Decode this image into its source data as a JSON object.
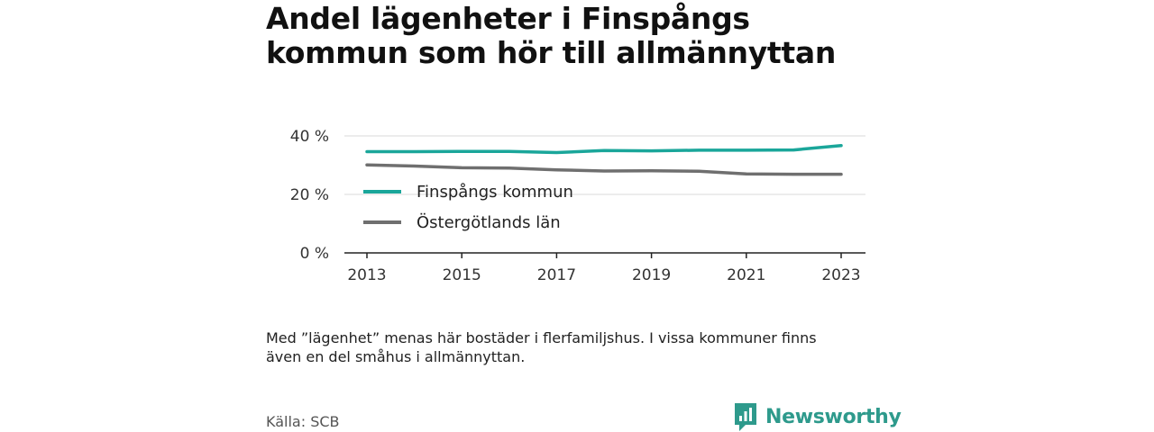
{
  "title_lines": [
    "Andel lägenheter i Finspångs",
    "kommun som hör till allmännyttan"
  ],
  "note_lines": [
    "Med ”lägenhet” menas här bostäder i flerfamiljshus. I vissa kommuner finns",
    "även en del småhus i allmännyttan."
  ],
  "source": "Källa: SCB",
  "brand": {
    "name": "Newsworthy",
    "color": "#2e9a8c",
    "icon": "bar-chart-speech-bubble-icon"
  },
  "chart_data": {
    "type": "line",
    "x": [
      2013,
      2014,
      2015,
      2016,
      2017,
      2018,
      2019,
      2020,
      2021,
      2022,
      2023
    ],
    "xticks": [
      2013,
      2015,
      2017,
      2019,
      2021,
      2023
    ],
    "ylim": [
      0,
      40
    ],
    "yticks": [
      0,
      20,
      40
    ],
    "ytick_labels": [
      "0 %",
      "20 %",
      "40 %"
    ],
    "grid": true,
    "legend_position": "middle-left",
    "series": [
      {
        "name": "Finspångs kommun",
        "color": "#1aa69a",
        "values": [
          34.6,
          34.6,
          34.7,
          34.7,
          34.3,
          35.0,
          34.9,
          35.1,
          35.1,
          35.2,
          36.7
        ]
      },
      {
        "name": "Östergötlands län",
        "color": "#6f6f6f",
        "values": [
          30.1,
          29.7,
          29.1,
          29.0,
          28.4,
          28.0,
          28.1,
          27.9,
          27.0,
          26.9,
          26.9
        ]
      }
    ]
  }
}
